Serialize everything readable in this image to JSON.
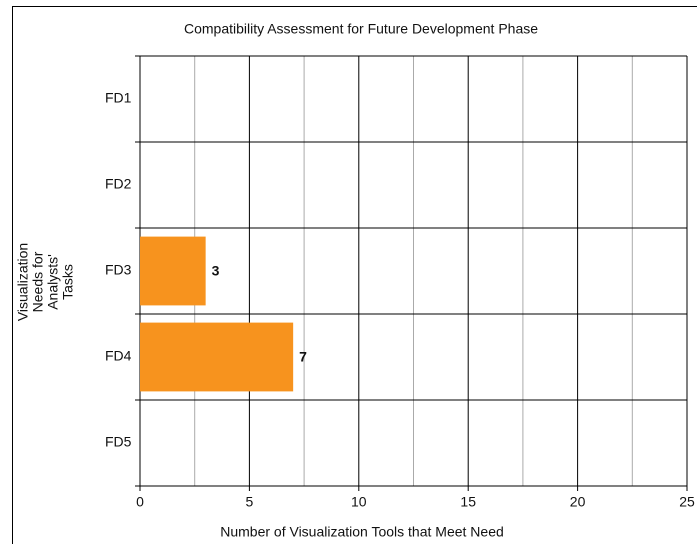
{
  "chart_data": {
    "type": "barh",
    "title": "Compatibility Assessment for Future Development Phase",
    "xlabel": "Number of Visualization Tools that Meet Need",
    "ylabel": [
      "Visualization",
      "Needs for",
      "Analysts'",
      "Tasks"
    ],
    "categories": [
      "FD1",
      "FD2",
      "FD3",
      "FD4",
      "FD5"
    ],
    "values": [
      null,
      null,
      3,
      7,
      null
    ],
    "color": "#f7931e",
    "xlim": [
      0,
      25
    ],
    "xticks": [
      0,
      5,
      10,
      15,
      20,
      25
    ],
    "minor_xticks": [
      2.5,
      7.5,
      12.5,
      17.5,
      22.5
    ],
    "grid": true
  }
}
